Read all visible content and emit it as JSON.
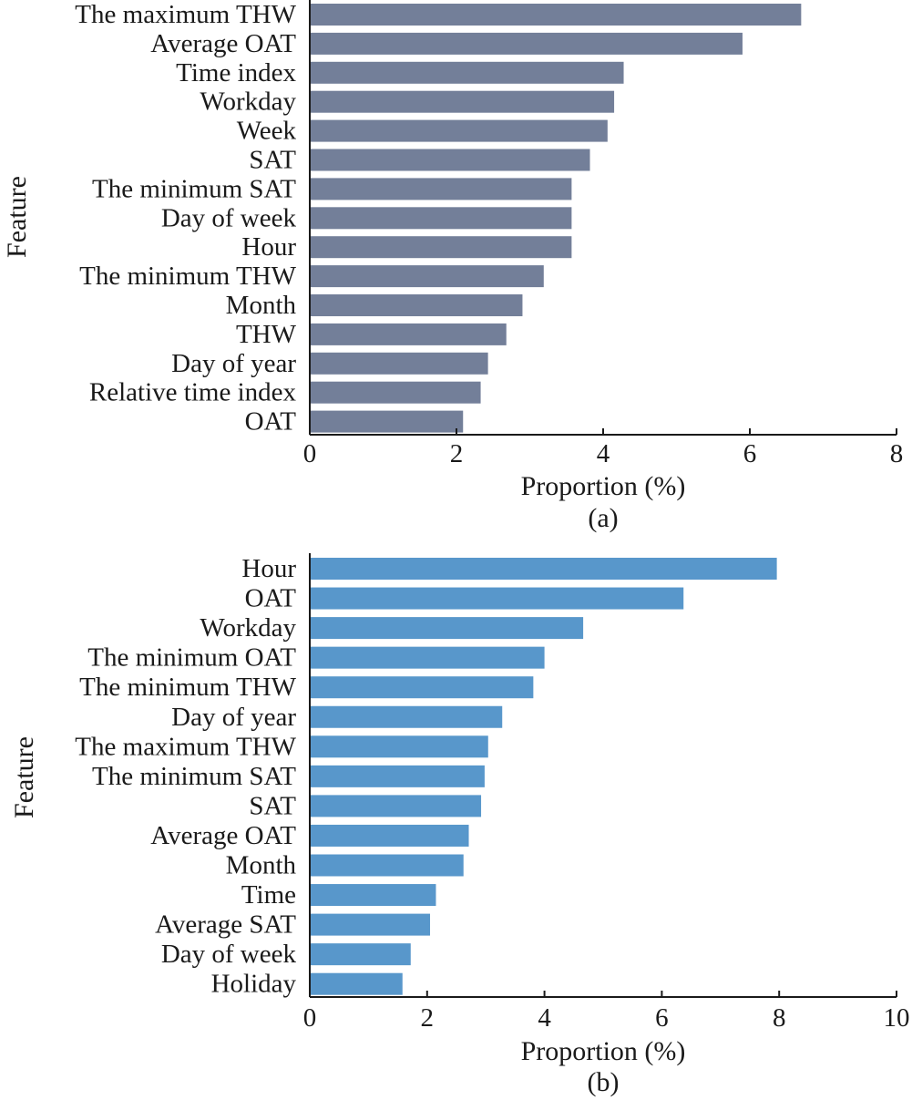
{
  "chart_data": [
    {
      "type": "bar",
      "orientation": "horizontal",
      "panel_label": "(a)",
      "xlabel": "Proportion (%)",
      "ylabel": "Feature",
      "xlim": [
        0,
        8
      ],
      "xticks": [
        0,
        2,
        4,
        6,
        8
      ],
      "bar_color": "#737f99",
      "categories": [
        "The maximum THW",
        "Average OAT",
        "Time index",
        "Workday",
        "Week",
        "SAT",
        "The minimum SAT",
        "Day of week",
        "Hour",
        "The minimum THW",
        "Month",
        "THW",
        "Day of year",
        "Relative time index",
        "OAT"
      ],
      "values": [
        6.7,
        5.9,
        4.28,
        4.15,
        4.06,
        3.82,
        3.57,
        3.57,
        3.57,
        3.19,
        2.9,
        2.68,
        2.43,
        2.33,
        2.09
      ]
    },
    {
      "type": "bar",
      "orientation": "horizontal",
      "panel_label": "(b)",
      "xlabel": "Proportion (%)",
      "ylabel": "Feature",
      "xlim": [
        0,
        10
      ],
      "xticks": [
        0,
        2,
        4,
        6,
        8,
        10
      ],
      "bar_color": "#5897cb",
      "categories": [
        "Hour",
        "OAT",
        "Workday",
        "The minimum OAT",
        "The minimum THW",
        "Day of year",
        "The maximum THW",
        "The minimum SAT",
        "SAT",
        "Average OAT",
        "Month",
        "Time",
        "Average SAT",
        "Day of week",
        "Holiday"
      ],
      "values": [
        7.96,
        6.37,
        4.66,
        4.0,
        3.81,
        3.28,
        3.04,
        2.98,
        2.92,
        2.71,
        2.62,
        2.15,
        2.05,
        1.72,
        1.58
      ]
    }
  ]
}
